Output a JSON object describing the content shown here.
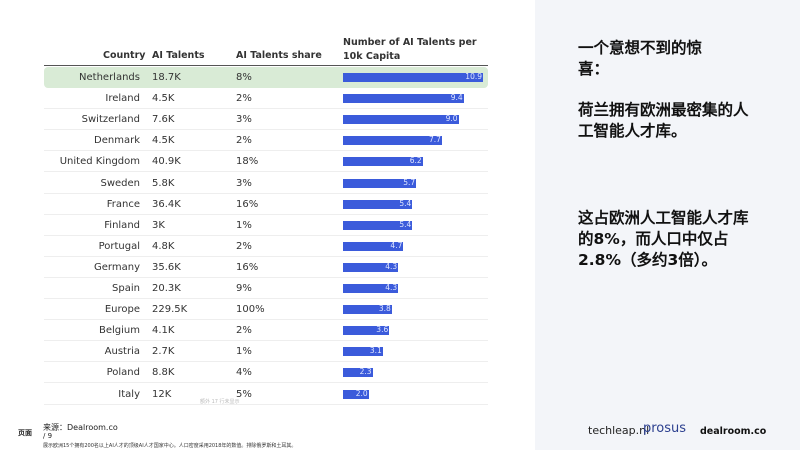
{
  "table": {
    "headers": [
      "Country",
      "AI Talents",
      "AI Talents share",
      "Number of AI Talents per 10k Capita"
    ],
    "highlight_color": "#d9ebd6",
    "bar_color": "#3b5bdb",
    "rows": [
      {
        "country": "Netherlands",
        "talents": "18.7K",
        "share": "8%",
        "per10k": 10.9,
        "label": "10.9"
      },
      {
        "country": "Ireland",
        "talents": "4.5K",
        "share": "2%",
        "per10k": 9.4,
        "label": "9.4"
      },
      {
        "country": "Switzerland",
        "talents": "7.6K",
        "share": "3%",
        "per10k": 9.0,
        "label": "9.0"
      },
      {
        "country": "Denmark",
        "talents": "4.5K",
        "share": "2%",
        "per10k": 7.7,
        "label": "7.7"
      },
      {
        "country": "United Kingdom",
        "talents": "40.9K",
        "share": "18%",
        "per10k": 6.2,
        "label": "6.2"
      },
      {
        "country": "Sweden",
        "talents": "5.8K",
        "share": "3%",
        "per10k": 5.7,
        "label": "5.7"
      },
      {
        "country": "France",
        "talents": "36.4K",
        "share": "16%",
        "per10k": 5.4,
        "label": "5.4"
      },
      {
        "country": "Finland",
        "talents": "3K",
        "share": "1%",
        "per10k": 5.4,
        "label": "5.4"
      },
      {
        "country": "Portugal",
        "talents": "4.8K",
        "share": "2%",
        "per10k": 4.7,
        "label": "4.7"
      },
      {
        "country": "Germany",
        "talents": "35.6K",
        "share": "16%",
        "per10k": 4.3,
        "label": "4.3"
      },
      {
        "country": "Spain",
        "talents": "20.3K",
        "share": "9%",
        "per10k": 4.3,
        "label": "4.3"
      },
      {
        "country": "Europe",
        "talents": "229.5K",
        "share": "100%",
        "per10k": 3.8,
        "label": "3.8"
      },
      {
        "country": "Belgium",
        "talents": "4.1K",
        "share": "2%",
        "per10k": 3.6,
        "label": "3.6"
      },
      {
        "country": "Austria",
        "talents": "2.7K",
        "share": "1%",
        "per10k": 3.1,
        "label": "3.1"
      },
      {
        "country": "Poland",
        "talents": "8.8K",
        "share": "4%",
        "per10k": 2.3,
        "label": "2.3"
      },
      {
        "country": "Italy",
        "talents": "12K",
        "share": "5%",
        "per10k": 2.0,
        "label": "2.0"
      }
    ],
    "more_rows_note": "额外 17 行未显示"
  },
  "footer": {
    "page_label": "页面",
    "source": "来源：Dealroom.co",
    "page": "/ 9",
    "footnote": "展示欧洲15个拥有200名以上AI人才的顶级AI人才国家中心。人口密度采用2018年的数值。排除俄罗斯和土耳其。"
  },
  "side": {
    "heading": "一个意想不到的惊喜：",
    "p1": "荷兰拥有欧洲最密集的人工智能人才库。",
    "p2": "这占欧洲人工智能人才库的8%，而人口中仅占2.8%（多约3倍）。"
  },
  "logos": [
    "techleap.nl",
    "prosus",
    "dealroom.co"
  ]
}
